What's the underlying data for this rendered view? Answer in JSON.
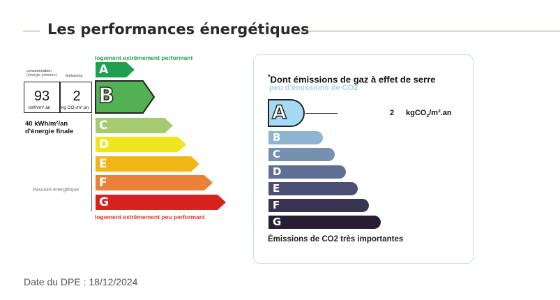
{
  "section": {
    "title": "Les performances énergétiques"
  },
  "dpe": {
    "consumption_header": "consommation",
    "consumption_subheader": "(énergie primaire)",
    "emissions_header": "émissions",
    "consumption_value": "93",
    "consumption_unit": "kWh/m².an",
    "emissions_value": "2",
    "emissions_unit": "kg CO₂/m².an",
    "final_energy_line1": "40 kWh/m²/an",
    "final_energy_line2": "d'énergie finale",
    "top_caption": "logement extrêmement performant",
    "bottom_caption": "logement extrêmement peu performant",
    "passoire_label": "Passoire énergétique",
    "current_class": "B",
    "classes": [
      {
        "letter": "A",
        "color": "#1fa050"
      },
      {
        "letter": "B",
        "color": "#52b153"
      },
      {
        "letter": "C",
        "color": "#a5ca70"
      },
      {
        "letter": "D",
        "color": "#f1e51d"
      },
      {
        "letter": "E",
        "color": "#f1b517"
      },
      {
        "letter": "F",
        "color": "#eb823a"
      },
      {
        "letter": "G",
        "color": "#d8221f"
      }
    ]
  },
  "ges": {
    "title": "Dont émissions de gaz à effet de serre",
    "title_mark": "*",
    "subtitle": "peu d'émissions de CO2",
    "current_class": "A",
    "value": "2",
    "unit_main": "kgCO",
    "unit_sub": "2",
    "unit_tail": "/m².an",
    "bottom_caption": "Émissions de CO2 très importantes",
    "classes": [
      {
        "letter": "A",
        "color": "#a5daf5"
      },
      {
        "letter": "B",
        "color": "#8db4d0"
      },
      {
        "letter": "C",
        "color": "#7690b1"
      },
      {
        "letter": "D",
        "color": "#5f6f94"
      },
      {
        "letter": "E",
        "color": "#4b4f74"
      },
      {
        "letter": "F",
        "color": "#383553"
      },
      {
        "letter": "G",
        "color": "#281d33"
      }
    ]
  },
  "footer": {
    "date": "Date du DPE : 18/12/2024"
  }
}
